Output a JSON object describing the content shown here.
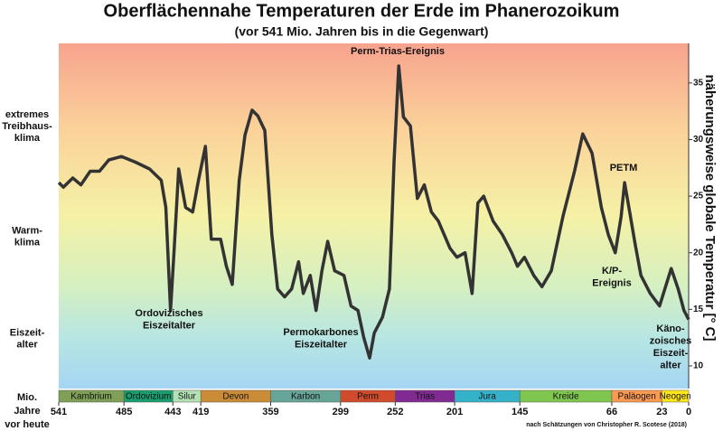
{
  "chart_data": {
    "type": "line",
    "title": "Oberflächennahe Temperaturen der Erde im Phanerozoikum",
    "subtitle": "(vor 541 Mio. Jahren bis in die Gegenwart)",
    "y_label": "näherungsweise globale Temperatur [° C]",
    "x_label": [
      "Mio.",
      "Jahre",
      "vor heute"
    ],
    "source": "nach Schätzungen von Christopher R. Scotese (2018)",
    "color": "#333333",
    "x": [
      541,
      537,
      529,
      522,
      514,
      506,
      498,
      487,
      475,
      463,
      453,
      449,
      445,
      442,
      438,
      432,
      426,
      421,
      415,
      410,
      402,
      397,
      392,
      386,
      381,
      375,
      370,
      364,
      358,
      353,
      347,
      341,
      335,
      331,
      325,
      320,
      315,
      310,
      304,
      296,
      290,
      284,
      279,
      274,
      270,
      263,
      257,
      253,
      249,
      245,
      239,
      233,
      227,
      221,
      215,
      205,
      199,
      192,
      186,
      181,
      176,
      168,
      160,
      152,
      147,
      141,
      133,
      126,
      118,
      108,
      98,
      91,
      83,
      75,
      69,
      63,
      58,
      55,
      50,
      46,
      41,
      33,
      25,
      15,
      9,
      4,
      0
    ],
    "values": [
      26.2,
      25.8,
      26.6,
      26.0,
      27.2,
      27.2,
      28.2,
      28.5,
      28.0,
      27.4,
      26.4,
      24.0,
      14.9,
      20.0,
      27.4,
      24.0,
      23.6,
      26.4,
      29.4,
      21.2,
      21.2,
      18.8,
      17.2,
      26.4,
      30.4,
      32.6,
      32.1,
      30.8,
      21.6,
      16.8,
      16.1,
      16.8,
      19.2,
      16.4,
      18.0,
      14.9,
      18.4,
      21.0,
      18.4,
      18.0,
      15.3,
      14.9,
      12.5,
      10.7,
      12.9,
      14.3,
      16.8,
      28.0,
      36.5,
      32.0,
      31.2,
      24.8,
      26.0,
      23.6,
      22.8,
      20.4,
      19.6,
      20.0,
      16.4,
      24.4,
      25.0,
      22.8,
      21.6,
      20.0,
      18.8,
      19.6,
      18.0,
      17.0,
      18.4,
      23.2,
      27.2,
      30.5,
      28.8,
      24.0,
      21.6,
      20.0,
      23.2,
      26.2,
      23.2,
      20.8,
      18.0,
      16.4,
      15.3,
      18.6,
      16.8,
      14.9,
      14.1
    ],
    "xlim": [
      541,
      0
    ],
    "xticks": [
      541,
      485,
      443,
      419,
      359,
      299,
      252,
      201,
      145,
      66,
      23,
      0
    ],
    "ylim": [
      8,
      38.5
    ],
    "yticks": [
      10,
      15,
      20,
      25,
      30,
      35
    ],
    "periods": [
      {
        "name": "Kambrium",
        "start": 541,
        "end": 485,
        "color": "#7fa056"
      },
      {
        "name": "Ordovizium",
        "start": 485,
        "end": 443,
        "color": "#1a9d6f"
      },
      {
        "name": "Silur",
        "start": 443,
        "end": 419,
        "color": "#b3e1b6"
      },
      {
        "name": "Devon",
        "start": 419,
        "end": 359,
        "color": "#cb8c37"
      },
      {
        "name": "Karbon",
        "start": 359,
        "end": 299,
        "color": "#67a599"
      },
      {
        "name": "Perm",
        "start": 299,
        "end": 252,
        "color": "#d04a2c"
      },
      {
        "name": "Trias",
        "start": 252,
        "end": 201,
        "color": "#812b92"
      },
      {
        "name": "Jura",
        "start": 201,
        "end": 145,
        "color": "#34b2c9"
      },
      {
        "name": "Kreide",
        "start": 145,
        "end": 66,
        "color": "#7fc64e"
      },
      {
        "name": "Paläogen",
        "start": 66,
        "end": 23,
        "color": "#fd9a52"
      },
      {
        "name": "Neogen",
        "start": 23,
        "end": 0,
        "color": "#ffe619"
      }
    ],
    "zones": [
      {
        "lines": [
          "extremes",
          "Treibhaus-",
          "klima"
        ],
        "color": "#c00000"
      },
      {
        "lines": [
          "Warm-",
          "klima"
        ],
        "color": "#b8860b"
      },
      {
        "lines": [
          "Eiszeit-",
          "alter"
        ],
        "color": "#1a1a8c"
      }
    ],
    "annotations": [
      [
        "Perm-Trias-Ereignis"
      ],
      [
        "Ordovizisches",
        "Eiszeitalter"
      ],
      [
        "Permokarbones",
        "Eiszeitalter"
      ],
      [
        "PETM"
      ],
      [
        "K/P-",
        "Ereignis"
      ],
      [
        "Käno-",
        "zoisches",
        "Eiszeit-",
        "alter"
      ]
    ]
  }
}
